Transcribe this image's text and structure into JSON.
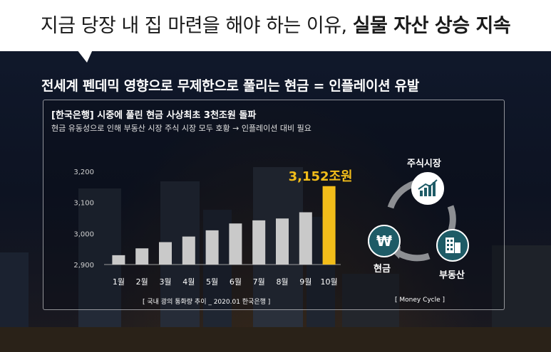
{
  "headline": {
    "normal": "지금 당장 내 집 마련을 해야 하는 이유,",
    "bold": "실물 자산 상승 지속"
  },
  "subhead": "전세계 펜데믹 영향으로 무제한으로 풀리는 현금 = 인플레이션 유발",
  "panel": {
    "title": "[한국은행] 시중에 풀린 현금 사상최초 3천조원 돌파",
    "subtitle": "현금 유동성으로 인해 부동산 시장 주식 시장 모두 호황  → 인플레이션 대비 필요"
  },
  "chart_data": {
    "type": "bar",
    "categories": [
      "1월",
      "2월",
      "3월",
      "4월",
      "5월",
      "6월",
      "7월",
      "8월",
      "9월",
      "10월"
    ],
    "values": [
      2930,
      2952,
      2972,
      2990,
      3010,
      3032,
      3042,
      3048,
      3068,
      3152
    ],
    "ylim": [
      2900,
      3220
    ],
    "yticks": [
      2900,
      3000,
      3100,
      3200
    ],
    "ytick_labels": [
      "2,900",
      "3,000",
      "3,100",
      "3,200"
    ],
    "highlight_index": 9,
    "highlight_label": "3,152조원",
    "colors": {
      "bar": "#c9c9c9",
      "highlight": "#f2bd1a"
    },
    "source": "[ 국내 광의 통화량 추이 _ 2020.01 한국은행 ]"
  },
  "cycle": {
    "labels": [
      "주식시장",
      "부동산",
      "현금"
    ],
    "icons": [
      "stock-chart-icon",
      "building-icon",
      "won-coin-icon"
    ],
    "caption": "[ Money Cycle ]",
    "colors": {
      "icon_fill": "#1e5b66",
      "arrow": "#8d8f93"
    }
  }
}
